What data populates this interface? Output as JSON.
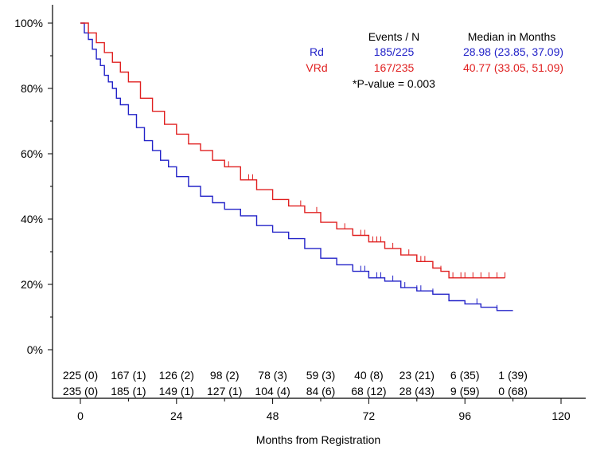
{
  "chart_data": {
    "type": "line",
    "xlabel": "Months from Registration",
    "ylabel": "",
    "xlim": [
      -6,
      126
    ],
    "ylim": [
      -15,
      108
    ],
    "x_ticks": [
      0,
      24,
      48,
      72,
      96,
      120
    ],
    "x_tick_labels": [
      "0",
      "24",
      "48",
      "72",
      "96",
      "120"
    ],
    "y_ticks": [
      0,
      20,
      40,
      60,
      80,
      100
    ],
    "y_tick_labels": [
      "0%",
      "20%",
      "40%",
      "60%",
      "80%",
      "100%"
    ],
    "legend": {
      "header_events": "Events / N",
      "header_median": "Median in Months",
      "pvalue": "*P-value = 0.003",
      "placement": "top-right",
      "rows": [
        {
          "label": "Rd",
          "events": "185/225",
          "median": "28.98 (23.85, 37.09)",
          "color": "#2323c8"
        },
        {
          "label": "VRd",
          "events": "167/235",
          "median": "40.77 (33.05, 51.09)",
          "color": "#e02020"
        }
      ]
    },
    "at_risk_x": [
      0,
      12,
      24,
      36,
      48,
      60,
      72,
      84,
      96,
      108
    ],
    "series": [
      {
        "name": "Rd",
        "color": "#2323c8",
        "x": [
          0,
          1,
          2,
          3,
          4,
          5,
          6,
          7,
          8,
          9,
          10,
          12,
          14,
          16,
          18,
          20,
          22,
          24,
          27,
          30,
          33,
          36,
          40,
          44,
          48,
          52,
          56,
          60,
          64,
          68,
          72,
          76,
          80,
          84,
          88,
          92,
          96,
          100,
          104,
          108
        ],
        "y": [
          100,
          97,
          95,
          92,
          89,
          87,
          84,
          82,
          80,
          77,
          75,
          72,
          68,
          64,
          61,
          58,
          56,
          53,
          50,
          47,
          45,
          43,
          41,
          38,
          36,
          34,
          31,
          28,
          26,
          24,
          22,
          21,
          19,
          18,
          17,
          15,
          14,
          13,
          12,
          12
        ],
        "at_risk": [
          "225 (0)",
          "167 (1)",
          "126 (2)",
          "98 (2)",
          "78 (3)",
          "59 (3)",
          "40 (8)",
          "23 (21)",
          "6 (35)",
          "1 (39)"
        ],
        "censor_x": [
          18,
          40,
          70,
          71,
          72,
          74,
          75,
          78,
          81,
          84,
          85,
          88,
          92,
          99,
          104
        ]
      },
      {
        "name": "VRd",
        "color": "#e02020",
        "x": [
          0,
          2,
          4,
          6,
          8,
          10,
          12,
          15,
          18,
          21,
          24,
          27,
          30,
          33,
          36,
          40,
          44,
          48,
          52,
          56,
          60,
          64,
          68,
          72,
          76,
          80,
          84,
          88,
          90,
          92,
          96,
          100,
          104,
          106
        ],
        "y": [
          100,
          97,
          94,
          91,
          88,
          85,
          82,
          77,
          73,
          69,
          66,
          63,
          61,
          58,
          56,
          52,
          49,
          46,
          44,
          42,
          39,
          37,
          35,
          33,
          31,
          29,
          27,
          25,
          24,
          22,
          22,
          22,
          22,
          22
        ],
        "at_risk": [
          "235 (0)",
          "185 (1)",
          "149 (1)",
          "127 (1)",
          "104 (4)",
          "84 (6)",
          "68 (12)",
          "28 (43)",
          "9 (59)",
          "0 (68)"
        ],
        "censor_x": [
          36,
          37,
          42,
          43,
          55,
          59,
          66,
          68,
          70,
          71,
          72,
          73,
          74,
          75,
          76,
          78,
          80,
          82,
          84,
          85,
          86,
          90,
          92,
          93,
          95,
          96,
          98,
          100,
          102,
          104,
          106
        ]
      }
    ]
  }
}
